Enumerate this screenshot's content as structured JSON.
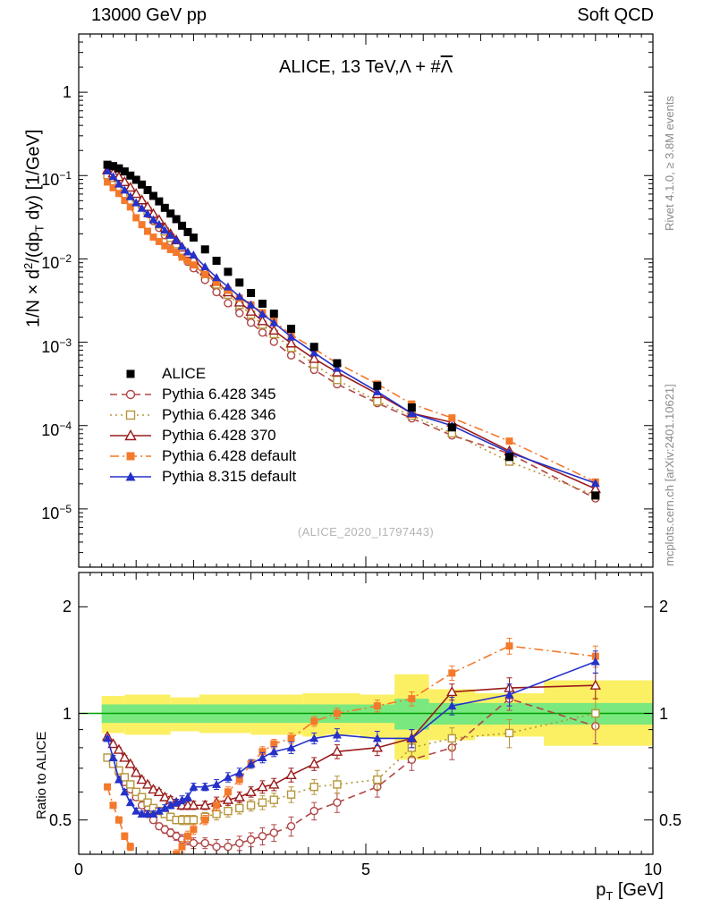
{
  "header": {
    "left": "13000 GeV pp",
    "right": "Soft QCD"
  },
  "side_notes": {
    "top": "Rivet 4.1.0, ≥ 3.8M events",
    "bottom": "mcplots.cern.ch [arXiv:2401.10621]"
  },
  "title": {
    "prefix": "ALICE, 13 TeV,Λ + #",
    "overline": "Λ"
  },
  "watermark": "(ALICE_2020_I1797443)",
  "axes": {
    "y_main_label_tokens": [
      {
        "t": "1/N × d"
      },
      {
        "sup": "2"
      },
      {
        "t": "/(dp"
      },
      {
        "sub": "T"
      },
      {
        "t": " dy) [1/GeV]"
      }
    ],
    "y_ratio_label": "Ratio to ALICE",
    "x_label_tokens": [
      {
        "t": "p"
      },
      {
        "sub": "T"
      },
      {
        "t": " [GeV]"
      }
    ],
    "x_ticks": [
      {
        "v": 0,
        "label": "0"
      },
      {
        "v": 5,
        "label": "5"
      },
      {
        "v": 10,
        "label": "10"
      }
    ],
    "y_main_ticks": [
      {
        "v": 1,
        "label": "1"
      },
      {
        "v": 0.1,
        "label": "10^−1"
      },
      {
        "v": 0.01,
        "label": "10^−2"
      },
      {
        "v": 0.001,
        "label": "10^−3"
      },
      {
        "v": 0.0001,
        "label": "10^−4"
      },
      {
        "v": 1e-05,
        "label": "10^−5"
      }
    ],
    "y_ratio_ticks": [
      {
        "v": 2,
        "label": "2"
      },
      {
        "v": 1,
        "label": "1"
      },
      {
        "v": 0.5,
        "label": "0.5"
      }
    ],
    "x_range": [
      0,
      10
    ],
    "y_main_range": [
      2e-06,
      5
    ],
    "y_ratio_range": [
      0.4,
      2.5
    ],
    "y_main_scale": "log",
    "y_ratio_scale": "log"
  },
  "chart_data": {
    "type": "line",
    "title": "ALICE, 13 TeV, Λ + #Λ̄",
    "xlabel": "p_T [GeV]",
    "ylabel": "1/N × d^2/(dp_T dy) [1/GeV]",
    "ylabel_ratio": "Ratio to ALICE",
    "x_range": [
      0,
      10
    ],
    "y_range": [
      2e-06,
      5
    ],
    "ratio_range": [
      0.4,
      2.5
    ],
    "scale": "log",
    "x": [
      0.5,
      0.6,
      0.7,
      0.8,
      0.9,
      1.0,
      1.1,
      1.2,
      1.3,
      1.4,
      1.5,
      1.6,
      1.7,
      1.8,
      1.9,
      2.0,
      2.2,
      2.4,
      2.6,
      2.8,
      3.0,
      3.2,
      3.4,
      3.7,
      4.1,
      4.5,
      5.2,
      5.8,
      6.5,
      7.5,
      9.0
    ],
    "alice": {
      "label": "ALICE",
      "color": "#000000",
      "values": [
        0.135,
        0.13,
        0.122,
        0.112,
        0.1,
        0.089,
        0.078,
        0.067,
        0.057,
        0.049,
        0.041,
        0.035,
        0.03,
        0.025,
        0.021,
        0.018,
        0.013,
        0.0095,
        0.007,
        0.0052,
        0.0039,
        0.0029,
        0.0022,
        0.00145,
        0.00088,
        0.00056,
        0.0003,
        0.000165,
        9.5e-05,
        4.2e-05,
        1.45e-05
      ]
    },
    "series": [
      {
        "label": "Pythia 6.428 345",
        "color": "#b04646",
        "marker": "circle-open",
        "line": "dashed",
        "ratio": [
          0.75,
          0.72,
          0.68,
          0.64,
          0.61,
          0.58,
          0.55,
          0.52,
          0.5,
          0.48,
          0.47,
          0.46,
          0.45,
          0.44,
          0.44,
          0.43,
          0.43,
          0.42,
          0.42,
          0.43,
          0.44,
          0.45,
          0.46,
          0.48,
          0.53,
          0.56,
          0.62,
          0.74,
          0.8,
          1.1,
          0.92
        ]
      },
      {
        "label": "Pythia 6.428 346",
        "color": "#b5953a",
        "marker": "square-open",
        "line": "dotted",
        "ratio": [
          0.75,
          0.72,
          0.69,
          0.66,
          0.63,
          0.6,
          0.58,
          0.56,
          0.54,
          0.53,
          0.52,
          0.51,
          0.5,
          0.5,
          0.5,
          0.5,
          0.51,
          0.52,
          0.53,
          0.54,
          0.55,
          0.56,
          0.57,
          0.59,
          0.62,
          0.63,
          0.65,
          0.8,
          0.85,
          0.88,
          1.0
        ]
      },
      {
        "label": "Pythia 6.428 370",
        "color": "#9a1b1b",
        "marker": "triangle-open",
        "line": "solid",
        "ratio": [
          0.86,
          0.82,
          0.79,
          0.75,
          0.72,
          0.68,
          0.65,
          0.63,
          0.61,
          0.6,
          0.58,
          0.57,
          0.56,
          0.55,
          0.55,
          0.55,
          0.55,
          0.56,
          0.57,
          0.58,
          0.6,
          0.62,
          0.63,
          0.67,
          0.72,
          0.78,
          0.8,
          0.85,
          1.15,
          1.18,
          1.2
        ]
      },
      {
        "label": "Pythia 6.428 default",
        "color": "#f4792b",
        "marker": "square-filled",
        "line": "dashdot",
        "ratio": [
          0.62,
          0.55,
          0.5,
          0.45,
          0.42,
          0.35,
          0.33,
          0.32,
          0.32,
          0.33,
          0.35,
          0.37,
          0.4,
          0.42,
          0.45,
          0.47,
          0.5,
          0.55,
          0.6,
          0.65,
          0.72,
          0.78,
          0.82,
          0.85,
          0.95,
          1.0,
          1.05,
          1.1,
          1.3,
          1.55,
          1.45
        ]
      },
      {
        "label": "Pythia 8.315 default",
        "color": "#2531c9",
        "marker": "triangle-filled",
        "line": "solid",
        "ratio": [
          0.85,
          0.75,
          0.65,
          0.6,
          0.56,
          0.53,
          0.52,
          0.52,
          0.52,
          0.53,
          0.54,
          0.55,
          0.56,
          0.57,
          0.58,
          0.62,
          0.62,
          0.63,
          0.66,
          0.68,
          0.72,
          0.75,
          0.78,
          0.8,
          0.85,
          0.87,
          0.85,
          0.85,
          1.05,
          1.13,
          1.4
        ]
      }
    ],
    "ratio_err": [
      0.01,
      0.01,
      0.01,
      0.01,
      0.01,
      0.01,
      0.01,
      0.01,
      0.01,
      0.01,
      0.012,
      0.012,
      0.012,
      0.015,
      0.015,
      0.015,
      0.015,
      0.02,
      0.02,
      0.02,
      0.02,
      0.025,
      0.025,
      0.03,
      0.03,
      0.035,
      0.04,
      0.05,
      0.06,
      0.08,
      0.1
    ],
    "bands": {
      "yellow_color": "#fbf064",
      "green_color": "#79e87f",
      "line_color": "#00a000",
      "yellow": [
        [
          0.4,
          0.8,
          0.88,
          1.12
        ],
        [
          0.8,
          1.6,
          0.87,
          1.13
        ],
        [
          1.6,
          2.1,
          0.89,
          1.11
        ],
        [
          2.1,
          3.0,
          0.88,
          1.13
        ],
        [
          3.0,
          3.9,
          0.87,
          1.13
        ],
        [
          3.9,
          4.3,
          0.86,
          1.14
        ],
        [
          4.3,
          4.9,
          0.87,
          1.14
        ],
        [
          4.9,
          5.5,
          0.85,
          1.13
        ],
        [
          5.5,
          6.1,
          0.74,
          1.29
        ],
        [
          6.1,
          6.9,
          0.84,
          1.17
        ],
        [
          6.9,
          8.1,
          0.86,
          1.14
        ],
        [
          8.1,
          10.0,
          0.81,
          1.24
        ]
      ],
      "green": [
        [
          0.4,
          5.5,
          0.94,
          1.06
        ],
        [
          5.5,
          6.1,
          0.9,
          1.1
        ],
        [
          6.1,
          10.0,
          0.93,
          1.07
        ]
      ]
    }
  }
}
